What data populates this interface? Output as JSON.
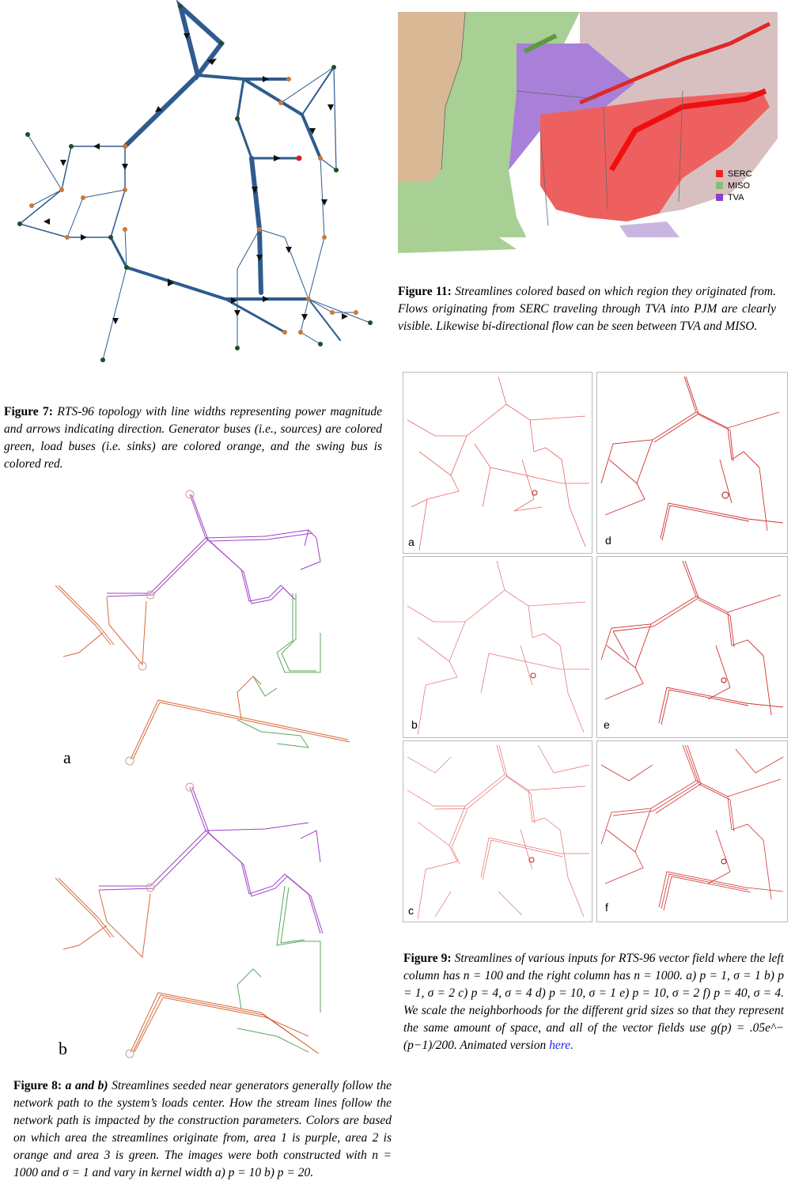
{
  "fig7": {
    "caption_label": "Figure 7:",
    "caption_text": "RTS-96 topology with line widths representing power magnitude and arrows indicating direction. Generator buses (i.e., sources) are colored green, load buses (i.e. sinks) are colored orange, and the swing bus is colored red.",
    "colors": {
      "line": "#2f5b8f",
      "generator": "#1e4d2b",
      "load": "#c87a3a",
      "swing": "#d42020"
    }
  },
  "fig11": {
    "caption_label": "Figure 11:",
    "caption_text": "Streamlines colored based on which region they originated from. Flows originating from SERC traveling through TVA into PJM are clearly visible. Likewise bi-directional flow can be seen between TVA and MISO.",
    "legend": [
      {
        "name": "SERC",
        "color": "#ee2222"
      },
      {
        "name": "MISO",
        "color": "#88c070"
      },
      {
        "name": "TVA",
        "color": "#8a3fc8"
      }
    ]
  },
  "fig8": {
    "panel_labels": [
      "a",
      "b"
    ],
    "caption_label": "Figure 8:",
    "caption_lead": "a and b)",
    "caption_text": "Streamlines seeded near generators generally follow the network path to the system’s loads center. How the stream lines follow the network path is impacted by the construction parameters. Colors are based on which area the streamlines originate from, area 1 is purple, area 2 is orange and area 3 is green. The images were both constructed with n = 1000 and σ = 1 and vary in kernel width a) p = 10 b) p = 20.",
    "colors": {
      "area1": "#a040c8",
      "area2": "#d86a3a",
      "area3": "#5aa860"
    }
  },
  "fig9": {
    "panel_labels": [
      "a",
      "d",
      "b",
      "e",
      "c",
      "f"
    ],
    "caption_label": "Figure 9:",
    "caption_text": "Streamlines of various inputs for RTS-96 vector field where the left column has n = 100 and the right column has n = 1000. a) p = 1, σ = 1 b) p = 1, σ = 2 c) p = 4, σ = 4 d) p = 10, σ = 1 e) p = 10, σ = 2 f) p = 40, σ = 4. We scale the neighborhoods for the different grid sizes so that they represent the same amount of space, and all of the vector fields use g(p) = .05e^−(p−1)/200.",
    "caption_tail": "Animated version",
    "link_text": "here.",
    "color": "#e04040"
  }
}
